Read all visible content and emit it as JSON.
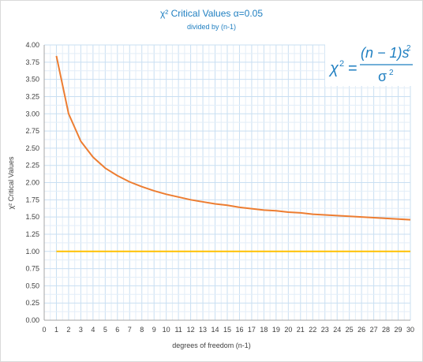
{
  "chart_data": {
    "type": "line",
    "title": "χ² Critical Values α=0.05",
    "subtitle": "divided by (n-1)",
    "xlabel": "degrees of freedom (n-1)",
    "ylabel": "χ² Critical Values",
    "x": [
      1,
      2,
      3,
      4,
      5,
      6,
      7,
      8,
      9,
      10,
      11,
      12,
      13,
      14,
      15,
      16,
      17,
      18,
      19,
      20,
      21,
      22,
      23,
      24,
      25,
      26,
      27,
      28,
      29,
      30
    ],
    "xlim": [
      0,
      30
    ],
    "ylim": [
      0,
      4
    ],
    "x_ticks": [
      "0",
      "1",
      "2",
      "3",
      "4",
      "5",
      "6",
      "7",
      "8",
      "9",
      "10",
      "11",
      "12",
      "13",
      "14",
      "15",
      "16",
      "17",
      "18",
      "19",
      "20",
      "21",
      "22",
      "23",
      "24",
      "25",
      "26",
      "27",
      "28",
      "29",
      "30"
    ],
    "y_ticks": [
      "0.00",
      "0.25",
      "0.50",
      "0.75",
      "1.00",
      "1.25",
      "1.50",
      "1.75",
      "2.00",
      "2.25",
      "2.50",
      "2.75",
      "3.00",
      "3.25",
      "3.50",
      "3.75",
      "4.00"
    ],
    "grid": true,
    "series": [
      {
        "color": "#ed7d31",
        "values": [
          3.84,
          3.0,
          2.6,
          2.37,
          2.21,
          2.1,
          2.01,
          1.94,
          1.88,
          1.83,
          1.79,
          1.75,
          1.72,
          1.69,
          1.67,
          1.64,
          1.62,
          1.6,
          1.59,
          1.57,
          1.56,
          1.54,
          1.53,
          1.52,
          1.51,
          1.5,
          1.49,
          1.48,
          1.47,
          1.46
        ]
      },
      {
        "color": "#ffc000",
        "values": [
          1,
          1,
          1,
          1,
          1,
          1,
          1,
          1,
          1,
          1,
          1,
          1,
          1,
          1,
          1,
          1,
          1,
          1,
          1,
          1,
          1,
          1,
          1,
          1,
          1,
          1,
          1,
          1,
          1,
          1
        ]
      }
    ],
    "annotation": {
      "lhs": "χ",
      "lhs_sup": "2",
      "equals": "=",
      "numerator": "(n − 1)s",
      "numerator_sup": "2",
      "denominator": "σ",
      "denominator_sup": "2",
      "color": "#1f7fc1"
    }
  }
}
